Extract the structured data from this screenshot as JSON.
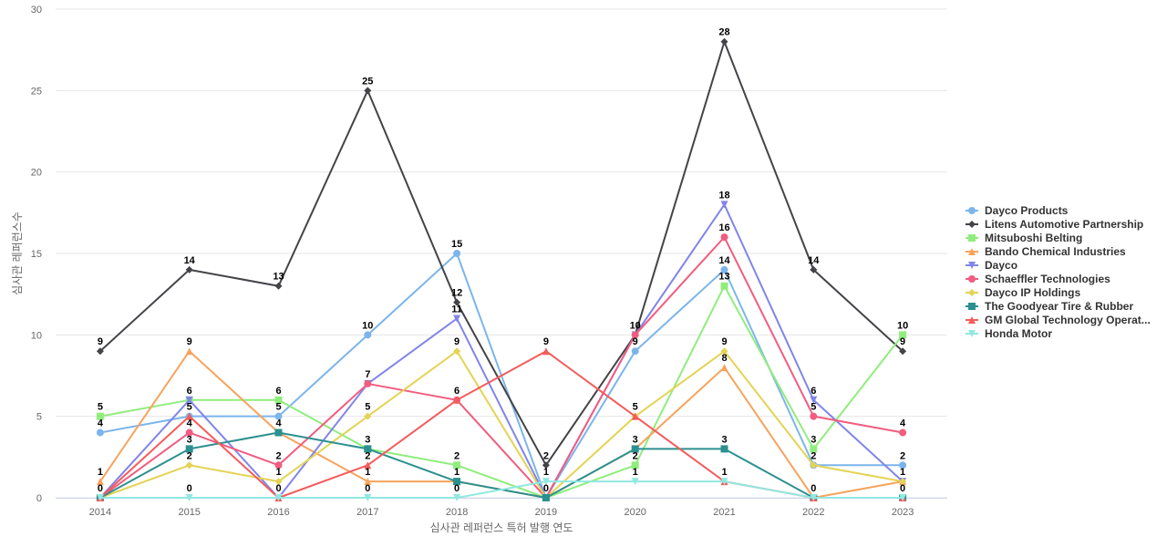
{
  "chart_data": {
    "type": "line",
    "xlabel": "심사관 레퍼런스 특허 발행 연도",
    "ylabel": "심사관 레퍼런스수",
    "ylim": [
      0,
      30
    ],
    "yticks": [
      0,
      5,
      10,
      15,
      20,
      25,
      30
    ],
    "grid": true,
    "legend_position": "right",
    "categories": [
      "2014",
      "2015",
      "2016",
      "2017",
      "2018",
      "2019",
      "2020",
      "2021",
      "2022",
      "2023"
    ],
    "series": [
      {
        "name": "Dayco Products",
        "color": "#7cb5ec",
        "marker": "circle",
        "values": [
          4,
          5,
          5,
          10,
          15,
          0,
          9,
          14,
          2,
          2
        ]
      },
      {
        "name": "Litens Automotive Partnership",
        "color": "#434348",
        "marker": "diamond",
        "values": [
          9,
          14,
          13,
          25,
          12,
          2,
          10,
          28,
          14,
          9
        ]
      },
      {
        "name": "Mitsuboshi Belting",
        "color": "#90ed7d",
        "marker": "square",
        "values": [
          5,
          6,
          6,
          3,
          2,
          0,
          2,
          13,
          3,
          10
        ]
      },
      {
        "name": "Bando Chemical Industries",
        "color": "#f7a35c",
        "marker": "triangle",
        "values": [
          1,
          9,
          4,
          1,
          1,
          0,
          3,
          8,
          0,
          1
        ]
      },
      {
        "name": "Dayco",
        "color": "#8085e9",
        "marker": "triangle-down",
        "values": [
          0,
          6,
          0,
          7,
          11,
          0,
          10,
          18,
          6,
          1
        ]
      },
      {
        "name": "Schaeffler Technologies",
        "color": "#f15c80",
        "marker": "circle",
        "values": [
          0,
          4,
          2,
          7,
          6,
          0,
          10,
          16,
          5,
          4
        ]
      },
      {
        "name": "Dayco IP Holdings",
        "color": "#e4d354",
        "marker": "diamond",
        "values": [
          0,
          2,
          1,
          5,
          9,
          0,
          5,
          9,
          2,
          1
        ]
      },
      {
        "name": "The Goodyear Tire & Rubber",
        "color": "#2b908f",
        "marker": "square",
        "values": [
          0,
          3,
          4,
          3,
          1,
          0,
          3,
          3,
          0,
          0
        ]
      },
      {
        "name": "GM Global Technology Operat...",
        "color": "#f45b5b",
        "marker": "triangle",
        "values": [
          0,
          5,
          0,
          2,
          6,
          9,
          5,
          1,
          0,
          0
        ]
      },
      {
        "name": "Honda Motor",
        "color": "#91e8e1",
        "marker": "triangle-down",
        "values": [
          0,
          0,
          0,
          0,
          0,
          1,
          1,
          1,
          0,
          0
        ]
      }
    ],
    "data_labels": [
      {
        "x": "2014",
        "text": "9",
        "value": 9
      },
      {
        "x": "2014",
        "text": "5",
        "value": 5
      },
      {
        "x": "2014",
        "text": "4",
        "value": 4
      },
      {
        "x": "2014",
        "text": "1",
        "value": 1
      },
      {
        "x": "2014",
        "text": "0",
        "value": 0
      },
      {
        "x": "2015",
        "text": "14",
        "value": 14
      },
      {
        "x": "2015",
        "text": "9",
        "value": 9
      },
      {
        "x": "2015",
        "text": "6",
        "value": 6
      },
      {
        "x": "2015",
        "text": "5",
        "value": 5
      },
      {
        "x": "2015",
        "text": "4",
        "value": 4
      },
      {
        "x": "2015",
        "text": "3",
        "value": 3
      },
      {
        "x": "2015",
        "text": "2",
        "value": 2
      },
      {
        "x": "2015",
        "text": "0",
        "value": 0
      },
      {
        "x": "2016",
        "text": "13",
        "value": 13
      },
      {
        "x": "2016",
        "text": "6",
        "value": 6
      },
      {
        "x": "2016",
        "text": "5",
        "value": 5
      },
      {
        "x": "2016",
        "text": "4",
        "value": 4
      },
      {
        "x": "2016",
        "text": "2",
        "value": 2
      },
      {
        "x": "2016",
        "text": "1",
        "value": 1
      },
      {
        "x": "2016",
        "text": "0",
        "value": 0
      },
      {
        "x": "2017",
        "text": "25",
        "value": 25
      },
      {
        "x": "2017",
        "text": "10",
        "value": 10
      },
      {
        "x": "2017",
        "text": "7",
        "value": 7
      },
      {
        "x": "2017",
        "text": "5",
        "value": 5
      },
      {
        "x": "2017",
        "text": "3",
        "value": 3
      },
      {
        "x": "2017",
        "text": "2",
        "value": 2
      },
      {
        "x": "2017",
        "text": "1",
        "value": 1
      },
      {
        "x": "2017",
        "text": "0",
        "value": 0
      },
      {
        "x": "2018",
        "text": "15",
        "value": 15
      },
      {
        "x": "2018",
        "text": "12",
        "value": 12
      },
      {
        "x": "2018",
        "text": "11",
        "value": 11
      },
      {
        "x": "2018",
        "text": "9",
        "value": 9
      },
      {
        "x": "2018",
        "text": "6",
        "value": 6
      },
      {
        "x": "2018",
        "text": "2",
        "value": 2
      },
      {
        "x": "2018",
        "text": "1",
        "value": 1
      },
      {
        "x": "2018",
        "text": "0",
        "value": 0
      },
      {
        "x": "2019",
        "text": "9",
        "value": 9
      },
      {
        "x": "2019",
        "text": "2",
        "value": 2
      },
      {
        "x": "2019",
        "text": "1",
        "value": 1
      },
      {
        "x": "2019",
        "text": "0",
        "value": 0
      },
      {
        "x": "2020",
        "text": "10",
        "value": 10
      },
      {
        "x": "2020",
        "text": "9",
        "value": 9
      },
      {
        "x": "2020",
        "text": "5",
        "value": 5
      },
      {
        "x": "2020",
        "text": "3",
        "value": 3
      },
      {
        "x": "2020",
        "text": "2",
        "value": 2
      },
      {
        "x": "2020",
        "text": "1",
        "value": 1
      },
      {
        "x": "2021",
        "text": "28",
        "value": 28
      },
      {
        "x": "2021",
        "text": "18",
        "value": 18
      },
      {
        "x": "2021",
        "text": "16",
        "value": 16
      },
      {
        "x": "2021",
        "text": "14",
        "value": 14
      },
      {
        "x": "2021",
        "text": "13",
        "value": 13
      },
      {
        "x": "2021",
        "text": "9",
        "value": 9
      },
      {
        "x": "2021",
        "text": "8",
        "value": 8
      },
      {
        "x": "2021",
        "text": "3",
        "value": 3
      },
      {
        "x": "2021",
        "text": "1",
        "value": 1
      },
      {
        "x": "2022",
        "text": "14",
        "value": 14
      },
      {
        "x": "2022",
        "text": "6",
        "value": 6
      },
      {
        "x": "2022",
        "text": "5",
        "value": 5
      },
      {
        "x": "2022",
        "text": "3",
        "value": 3
      },
      {
        "x": "2022",
        "text": "2",
        "value": 2
      },
      {
        "x": "2022",
        "text": "0",
        "value": 0
      },
      {
        "x": "2023",
        "text": "10",
        "value": 10
      },
      {
        "x": "2023",
        "text": "9",
        "value": 9
      },
      {
        "x": "2023",
        "text": "4",
        "value": 4
      },
      {
        "x": "2023",
        "text": "2",
        "value": 2
      },
      {
        "x": "2023",
        "text": "1",
        "value": 1
      },
      {
        "x": "2023",
        "text": "0",
        "value": 0
      }
    ]
  }
}
